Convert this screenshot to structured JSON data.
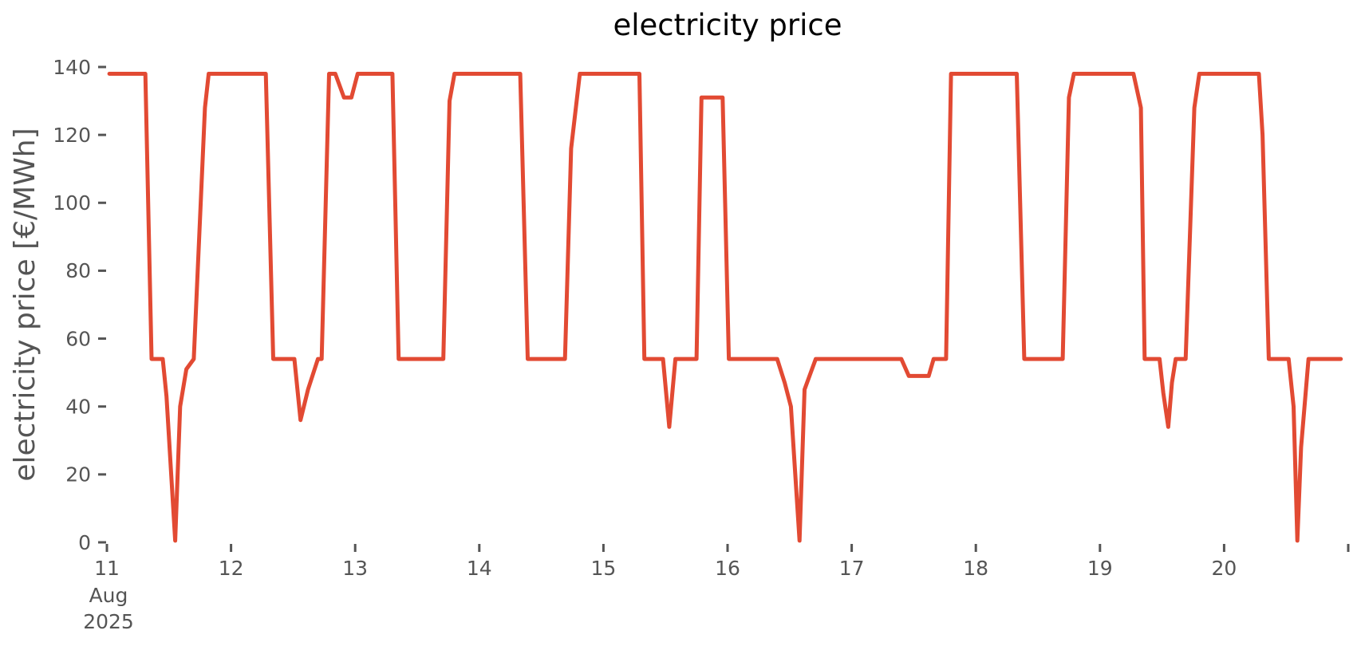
{
  "title": "electricity price",
  "colors": {
    "line": "#e24a33",
    "axis_text": "#555555",
    "title_text": "#000000",
    "background": "#ffffff"
  },
  "chart_data": {
    "type": "line",
    "title": "electricity price",
    "xlabel": "",
    "ylabel": "electricity price [€/MWh]",
    "grid": false,
    "legend": "none",
    "x_axis": {
      "unit": "day of month",
      "lim": [
        11,
        21
      ],
      "ticks": [
        {
          "v": 11,
          "label": "11"
        },
        {
          "v": 12,
          "label": "12"
        },
        {
          "v": 13,
          "label": "13"
        },
        {
          "v": 14,
          "label": "14"
        },
        {
          "v": 15,
          "label": "15"
        },
        {
          "v": 16,
          "label": "16"
        },
        {
          "v": 17,
          "label": "17"
        },
        {
          "v": 18,
          "label": "18"
        },
        {
          "v": 19,
          "label": "19"
        },
        {
          "v": 20,
          "label": "20"
        },
        {
          "v": 21,
          "label": ""
        }
      ],
      "first_tick_sublabels": [
        "Aug",
        "2025"
      ]
    },
    "y_axis": {
      "lim": [
        0,
        140
      ],
      "ticks": [
        0,
        20,
        40,
        60,
        80,
        100,
        120,
        140
      ]
    },
    "series": [
      {
        "name": "electricity price",
        "color": "#e24a33",
        "points": [
          [
            11.02,
            138
          ],
          [
            11.31,
            138
          ],
          [
            11.36,
            54
          ],
          [
            11.45,
            54
          ],
          [
            11.48,
            43
          ],
          [
            11.55,
            0.5
          ],
          [
            11.59,
            40
          ],
          [
            11.64,
            51
          ],
          [
            11.7,
            54
          ],
          [
            11.79,
            128
          ],
          [
            11.82,
            138
          ],
          [
            12.28,
            138
          ],
          [
            12.34,
            54
          ],
          [
            12.51,
            54
          ],
          [
            12.56,
            36
          ],
          [
            12.62,
            45
          ],
          [
            12.7,
            54
          ],
          [
            12.73,
            54
          ],
          [
            12.79,
            138
          ],
          [
            12.84,
            138
          ],
          [
            12.91,
            131
          ],
          [
            12.97,
            131
          ],
          [
            13.02,
            138
          ],
          [
            13.3,
            138
          ],
          [
            13.35,
            54
          ],
          [
            13.71,
            54
          ],
          [
            13.76,
            130
          ],
          [
            13.8,
            138
          ],
          [
            14.33,
            138
          ],
          [
            14.39,
            54
          ],
          [
            14.69,
            54
          ],
          [
            14.74,
            116
          ],
          [
            14.81,
            138
          ],
          [
            15.29,
            138
          ],
          [
            15.33,
            54
          ],
          [
            15.48,
            54
          ],
          [
            15.53,
            34
          ],
          [
            15.58,
            54
          ],
          [
            15.75,
            54
          ],
          [
            15.79,
            131
          ],
          [
            15.96,
            131
          ],
          [
            16.01,
            54
          ],
          [
            16.4,
            54
          ],
          [
            16.46,
            47
          ],
          [
            16.51,
            40
          ],
          [
            16.58,
            0.5
          ],
          [
            16.62,
            45
          ],
          [
            16.71,
            54
          ],
          [
            17.4,
            54
          ],
          [
            17.46,
            49
          ],
          [
            17.62,
            49
          ],
          [
            17.66,
            54
          ],
          [
            17.76,
            54
          ],
          [
            17.8,
            138
          ],
          [
            18.33,
            138
          ],
          [
            18.39,
            54
          ],
          [
            18.7,
            54
          ],
          [
            18.75,
            131
          ],
          [
            18.79,
            138
          ],
          [
            19.27,
            138
          ],
          [
            19.33,
            128
          ],
          [
            19.36,
            54
          ],
          [
            19.48,
            54
          ],
          [
            19.51,
            44
          ],
          [
            19.55,
            34
          ],
          [
            19.58,
            47
          ],
          [
            19.61,
            54
          ],
          [
            19.69,
            54
          ],
          [
            19.76,
            128
          ],
          [
            19.8,
            138
          ],
          [
            20.28,
            138
          ],
          [
            20.31,
            120
          ],
          [
            20.36,
            54
          ],
          [
            20.52,
            54
          ],
          [
            20.56,
            40
          ],
          [
            20.59,
            0.5
          ],
          [
            20.62,
            28
          ],
          [
            20.68,
            54
          ],
          [
            20.94,
            54
          ]
        ]
      }
    ]
  }
}
